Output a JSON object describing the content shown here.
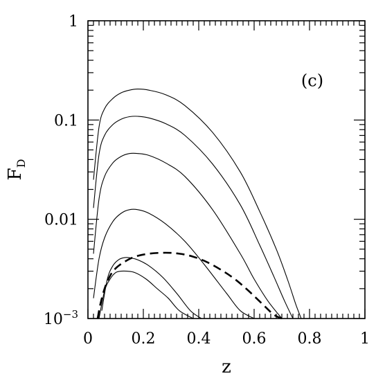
{
  "chart_data": {
    "type": "line",
    "title": "",
    "xlabel": "z",
    "ylabel": "F",
    "ylabel_subscript": "D",
    "panel_label": "(c)",
    "xlim": [
      0,
      1
    ],
    "ylim": [
      0.001,
      1
    ],
    "yscale": "log",
    "grid": false,
    "legend": "none",
    "x_ticks": [
      {
        "value": 0,
        "label": "0"
      },
      {
        "value": 0.2,
        "label": "0.2"
      },
      {
        "value": 0.4,
        "label": "0.4"
      },
      {
        "value": 0.6,
        "label": "0.6"
      },
      {
        "value": 0.8,
        "label": "0.8"
      },
      {
        "value": 1,
        "label": "1"
      }
    ],
    "y_ticks": [
      {
        "value": 1,
        "label": "1"
      },
      {
        "value": 0.1,
        "label": "0.1"
      },
      {
        "value": 0.01,
        "label": "0.01"
      },
      {
        "value": 0.001,
        "label": "10",
        "exponent": "−3"
      }
    ],
    "series": [
      {
        "style": "solid",
        "x": [
          0.02,
          0.04,
          0.06,
          0.09,
          0.12,
          0.15,
          0.18,
          0.22,
          0.28,
          0.35,
          0.45,
          0.55,
          0.62,
          0.68,
          0.72,
          0.75,
          0.77
        ],
        "y": [
          0.025,
          0.085,
          0.13,
          0.165,
          0.188,
          0.2,
          0.205,
          0.2,
          0.18,
          0.14,
          0.075,
          0.03,
          0.012,
          0.005,
          0.0025,
          0.0014,
          0.001
        ]
      },
      {
        "style": "solid",
        "x": [
          0.02,
          0.04,
          0.06,
          0.09,
          0.12,
          0.15,
          0.18,
          0.22,
          0.28,
          0.35,
          0.45,
          0.55,
          0.62,
          0.67,
          0.71,
          0.74
        ],
        "y": [
          0.013,
          0.045,
          0.07,
          0.09,
          0.102,
          0.108,
          0.109,
          0.105,
          0.092,
          0.07,
          0.036,
          0.014,
          0.0055,
          0.0027,
          0.0015,
          0.001
        ]
      },
      {
        "style": "solid",
        "x": [
          0.02,
          0.04,
          0.06,
          0.09,
          0.12,
          0.15,
          0.18,
          0.22,
          0.28,
          0.35,
          0.45,
          0.55,
          0.6,
          0.65,
          0.7
        ],
        "y": [
          0.0045,
          0.016,
          0.027,
          0.037,
          0.043,
          0.046,
          0.046,
          0.044,
          0.037,
          0.027,
          0.0125,
          0.0045,
          0.0025,
          0.0015,
          0.001
        ]
      },
      {
        "style": "solid",
        "x": [
          0.02,
          0.04,
          0.06,
          0.09,
          0.12,
          0.15,
          0.18,
          0.22,
          0.28,
          0.35,
          0.42,
          0.5,
          0.55,
          0.6
        ],
        "y": [
          0.0016,
          0.004,
          0.0065,
          0.0095,
          0.0115,
          0.0125,
          0.0125,
          0.0115,
          0.009,
          0.006,
          0.0035,
          0.0018,
          0.0012,
          0.001
        ]
      },
      {
        "style": "solid",
        "x": [
          0.05,
          0.07,
          0.09,
          0.11,
          0.13,
          0.15,
          0.18,
          0.22,
          0.27,
          0.32,
          0.37,
          0.41
        ],
        "y": [
          0.0012,
          0.0025,
          0.0034,
          0.0039,
          0.0041,
          0.0041,
          0.0039,
          0.0034,
          0.0026,
          0.0018,
          0.0012,
          0.001
        ]
      },
      {
        "style": "solid",
        "x": [
          0.04,
          0.06,
          0.08,
          0.1,
          0.12,
          0.14,
          0.17,
          0.21,
          0.25,
          0.29,
          0.33,
          0.38
        ],
        "y": [
          0.001,
          0.0019,
          0.0025,
          0.0029,
          0.003,
          0.003,
          0.0029,
          0.0025,
          0.002,
          0.0016,
          0.0012,
          0.001
        ]
      },
      {
        "style": "dashed",
        "x": [
          0.035,
          0.045,
          0.06,
          0.08,
          0.1,
          0.13,
          0.17,
          0.22,
          0.28,
          0.33,
          0.38,
          0.43,
          0.48,
          0.53,
          0.58,
          0.63,
          0.67,
          0.7
        ],
        "y": [
          0.001,
          0.0014,
          0.002,
          0.0027,
          0.0032,
          0.0037,
          0.0042,
          0.0045,
          0.0046,
          0.0045,
          0.0042,
          0.0037,
          0.0031,
          0.0025,
          0.0019,
          0.0014,
          0.0011,
          0.001
        ]
      }
    ]
  }
}
